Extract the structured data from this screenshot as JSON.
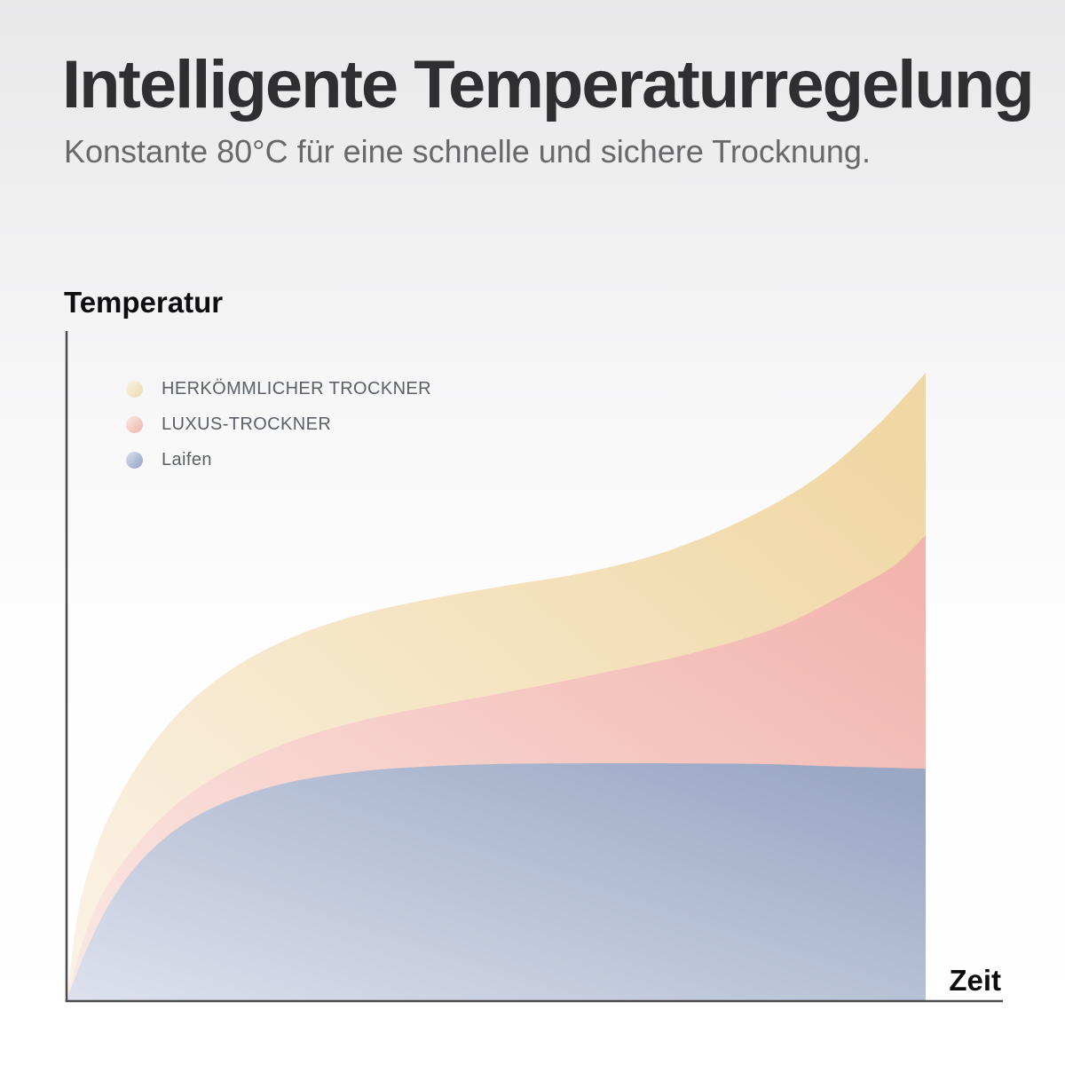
{
  "header": {
    "title": "Intelligente Temperaturregelung",
    "subtitle": "Konstante 80°C für eine schnelle und sichere Trocknung."
  },
  "colors": {
    "axis": "#4a4b4d",
    "title_text": "#2f2f31",
    "subtitle_text": "#68686b",
    "legend_text": "#5b5f66"
  },
  "chart_data": {
    "type": "area",
    "title": "",
    "xlabel": "Zeit",
    "ylabel": "Temperatur",
    "x_range": [
      0,
      1
    ],
    "y_range": [
      0,
      1
    ],
    "grid": false,
    "tick_labels": "none (qualitative axes)",
    "legend_position": "top-left",
    "annotation": "Laifen curve plateaus at a constant 80°C while conventional and luxury dryers keep rising over time",
    "series": [
      {
        "name": "HERKÖMMLICHER TROCKNER",
        "color": "#f0d7a3",
        "color_light": "#fbf3e8",
        "legend_color": "#f0e0bd",
        "points": [
          [
            0,
            0
          ],
          [
            0.013,
            0.129
          ],
          [
            0.031,
            0.215
          ],
          [
            0.057,
            0.295
          ],
          [
            0.093,
            0.371
          ],
          [
            0.139,
            0.441
          ],
          [
            0.196,
            0.499
          ],
          [
            0.263,
            0.544
          ],
          [
            0.336,
            0.576
          ],
          [
            0.418,
            0.6
          ],
          [
            0.511,
            0.621
          ],
          [
            0.604,
            0.641
          ],
          [
            0.697,
            0.672
          ],
          [
            0.79,
            0.721
          ],
          [
            0.873,
            0.783
          ],
          [
            0.945,
            0.863
          ],
          [
            1,
            0.94
          ]
        ]
      },
      {
        "name": "LUXUS-TROCKNER",
        "color": "#f2b5ae",
        "color_light": "#fbe9e4",
        "legend_color": "#f2c0ba",
        "points": [
          [
            0,
            0
          ],
          [
            0.021,
            0.096
          ],
          [
            0.046,
            0.169
          ],
          [
            0.083,
            0.235
          ],
          [
            0.129,
            0.295
          ],
          [
            0.186,
            0.344
          ],
          [
            0.253,
            0.384
          ],
          [
            0.331,
            0.415
          ],
          [
            0.418,
            0.439
          ],
          [
            0.511,
            0.461
          ],
          [
            0.615,
            0.488
          ],
          [
            0.728,
            0.52
          ],
          [
            0.832,
            0.561
          ],
          [
            0.919,
            0.618
          ],
          [
            0.966,
            0.654
          ],
          [
            1,
            0.697
          ]
        ]
      },
      {
        "name": "Laifen",
        "color": "#9ba8c5",
        "color_light": "#dde1ed",
        "legend_color": "#a3b0cf",
        "points": [
          [
            0,
            0
          ],
          [
            0.024,
            0.078
          ],
          [
            0.052,
            0.149
          ],
          [
            0.088,
            0.211
          ],
          [
            0.134,
            0.262
          ],
          [
            0.191,
            0.3
          ],
          [
            0.258,
            0.326
          ],
          [
            0.336,
            0.342
          ],
          [
            0.418,
            0.35
          ],
          [
            0.511,
            0.354
          ],
          [
            0.646,
            0.355
          ],
          [
            0.801,
            0.354
          ],
          [
            0.904,
            0.35
          ],
          [
            1,
            0.347
          ]
        ]
      }
    ]
  }
}
